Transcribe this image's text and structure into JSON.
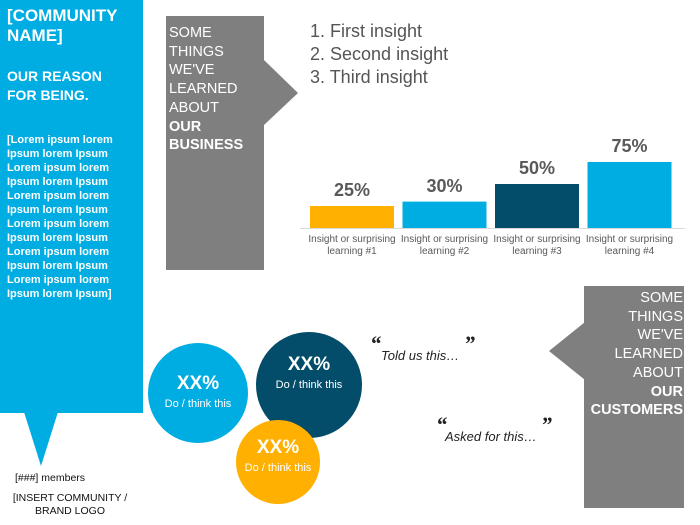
{
  "sidebar": {
    "community_name": "[COMMUNITY NAME]",
    "reason": "OUR REASON FOR BEING.",
    "lorem": "[Lorem ipsum lorem Ipsum lorem Ipsum Lorem ipsum lorem Ipsum lorem Ipsum Lorem ipsum lorem Ipsum lorem Ipsum Lorem ipsum lorem Ipsum lorem Ipsum Lorem ipsum lorem Ipsum lorem Ipsum Lorem ipsum lorem Ipsum lorem Ipsum]",
    "members": "[###] members",
    "logo_line1": "[INSERT COMMUNITY /",
    "logo_line2": "BRAND LOGO",
    "color": "#00ADE3"
  },
  "business_box": {
    "lines": [
      "SOME",
      "THINGS",
      "WE'VE",
      "LEARNED",
      "ABOUT"
    ],
    "bold": [
      "OUR",
      "BUSINESS"
    ]
  },
  "customers_box": {
    "lines": [
      "SOME",
      "THINGS",
      "WE'VE",
      "LEARNED",
      "ABOUT"
    ],
    "bold": [
      "OUR",
      "CUSTOMERS"
    ]
  },
  "insights": [
    "1.  First insight",
    "2.  Second insight",
    "3.  Third insight"
  ],
  "chart_data": {
    "type": "bar",
    "categories": [
      "Insight or surprising learning #1",
      "Insight or surprising learning #2",
      "Insight or surprising learning #3",
      "Insight or surprising learning #4"
    ],
    "values": [
      25,
      30,
      50,
      75
    ],
    "value_labels": [
      "25%",
      "30%",
      "50%",
      "75%"
    ],
    "colors": [
      "#FFB000",
      "#00ADE3",
      "#034D6A",
      "#00ADE3"
    ],
    "grid": false
  },
  "circles": [
    {
      "pct": "XX%",
      "label": "Do / think this",
      "color": "#00ADE3"
    },
    {
      "pct": "XX%",
      "label": "Do / think this",
      "color": "#034D6A"
    },
    {
      "pct": "XX%",
      "label": "Do / think this",
      "color": "#FFB000"
    }
  ],
  "quotes": [
    {
      "open": "“",
      "close": "”",
      "text": "Told us this…"
    },
    {
      "open": "“",
      "close": "”",
      "text": "Asked for this…"
    }
  ]
}
